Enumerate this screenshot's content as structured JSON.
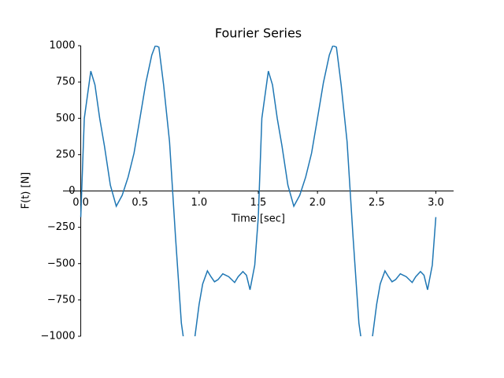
{
  "chart_data": {
    "type": "line",
    "title": "Fourier Series",
    "xlabel": "Time [sec]",
    "ylabel": "F(t) [N]",
    "xlim": [
      -0.15,
      3.15
    ],
    "ylim": [
      -1000,
      1000
    ],
    "xticks": [
      {
        "value": 0,
        "label": "0.0"
      },
      {
        "value": 0.5,
        "label": "0.5"
      },
      {
        "value": 1,
        "label": "1.0"
      },
      {
        "value": 1.5,
        "label": "1.5"
      },
      {
        "value": 2,
        "label": "2.0"
      },
      {
        "value": 2.5,
        "label": "2.5"
      },
      {
        "value": 3,
        "label": "3.0"
      }
    ],
    "yticks": [
      {
        "value": -1000,
        "label": "−1000"
      },
      {
        "value": -750,
        "label": "−750"
      },
      {
        "value": -500,
        "label": "−500"
      },
      {
        "value": -250,
        "label": "−250"
      },
      0,
      250,
      500,
      750,
      1000
    ],
    "x": [
      0,
      0.03,
      0.085,
      0.12,
      0.16,
      0.2,
      0.25,
      0.3,
      0.35,
      0.4,
      0.45,
      0.5,
      0.55,
      0.6,
      0.63,
      0.66,
      0.7,
      0.75,
      0.8,
      0.85,
      0.9,
      0.93,
      0.965,
      1.0,
      1.03,
      1.07,
      1.1,
      1.13,
      1.16,
      1.2,
      1.25,
      1.3,
      1.33,
      1.37,
      1.4,
      1.43,
      1.47,
      1.5,
      1.53,
      1.585,
      1.62,
      1.66,
      1.7,
      1.75,
      1.8,
      1.85,
      1.9,
      1.95,
      2.0,
      2.05,
      2.1,
      2.13,
      2.16,
      2.2,
      2.25,
      2.3,
      2.35,
      2.4,
      2.43,
      2.465,
      2.5,
      2.53,
      2.57,
      2.6,
      2.63,
      2.66,
      2.7,
      2.75,
      2.8,
      2.83,
      2.87,
      2.9,
      2.93,
      2.97,
      3.0
    ],
    "series": [
      {
        "color": "#1f77b4",
        "values": [
          -180,
          500,
          825,
          730,
          500,
          310,
          40,
          -105,
          -30,
          95,
          260,
          500,
          745,
          935,
          1000,
          990,
          730,
          340,
          -310,
          -910,
          -1200,
          -1200,
          -1000,
          -780,
          -640,
          -550,
          -590,
          -625,
          -610,
          -570,
          -590,
          -630,
          -590,
          -555,
          -580,
          -680,
          -510,
          -180,
          500,
          825,
          730,
          500,
          310,
          40,
          -105,
          -30,
          95,
          260,
          500,
          745,
          935,
          1000,
          990,
          730,
          340,
          -310,
          -910,
          -1200,
          -1200,
          -1000,
          -780,
          -640,
          -550,
          -590,
          -625,
          -610,
          -570,
          -590,
          -630,
          -590,
          -555,
          -580,
          -680,
          -510,
          -180
        ]
      }
    ]
  }
}
